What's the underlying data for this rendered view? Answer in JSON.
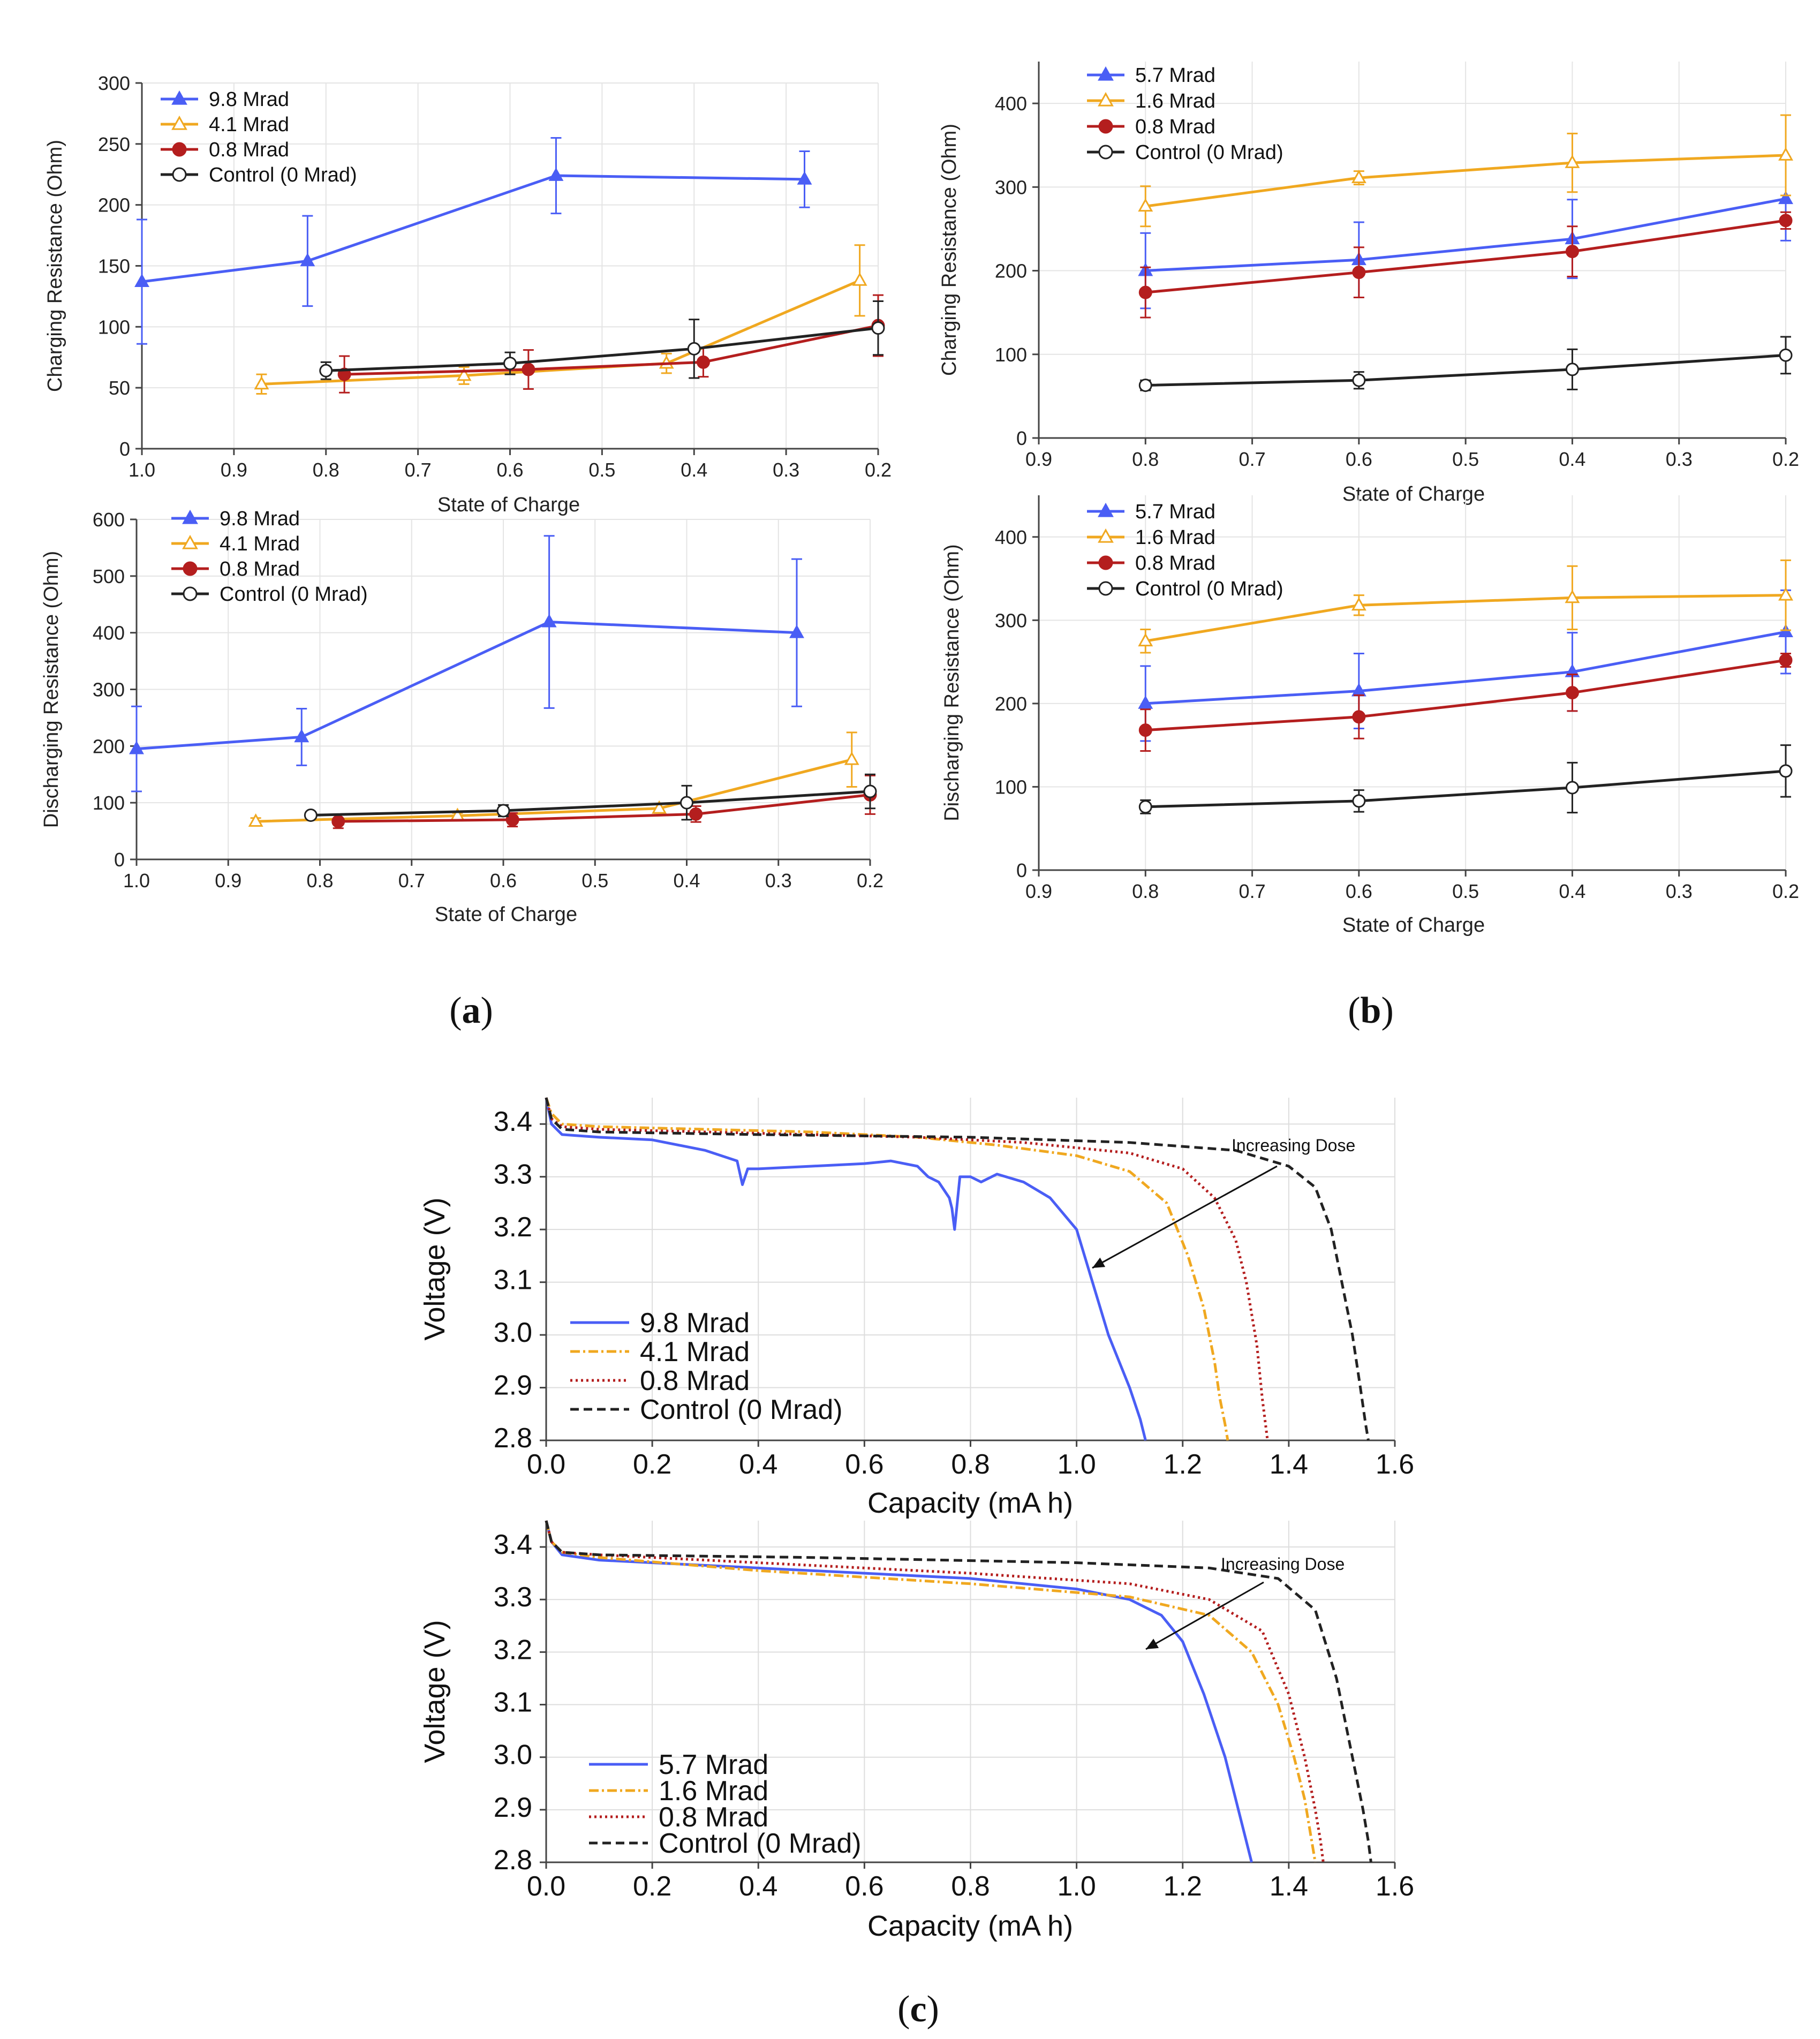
{
  "colors": {
    "blue": "#4a5ef5",
    "orange": "#f0a820",
    "red": "#b41e1e",
    "black": "#222222"
  },
  "captions": [
    {
      "open": "(",
      "letter": "a",
      "close": ")"
    },
    {
      "open": "(",
      "letter": "b",
      "close": ")"
    },
    {
      "open": "(",
      "letter": "c",
      "close": ")"
    }
  ],
  "chart_data": [
    {
      "id": "a-charge",
      "type": "line",
      "xlabel": "State of Charge",
      "ylabel": "Charging Resistance (Ohm)",
      "xlim": [
        1.0,
        0.2
      ],
      "ylim": [
        0,
        300
      ],
      "xticks": [
        "1.0",
        "0.9",
        "0.8",
        "0.7",
        "0.6",
        "0.5",
        "0.4",
        "0.3",
        "0.2"
      ],
      "yticks": [
        "0",
        "50",
        "100",
        "150",
        "200",
        "250",
        "300"
      ],
      "series": [
        {
          "name": "9.8 Mrad",
          "color": "blue",
          "marker": "triangle",
          "filled": true,
          "x": [
            1.0,
            0.82,
            0.55,
            0.28
          ],
          "y": [
            137,
            154,
            224,
            221
          ],
          "err": [
            51,
            37,
            31,
            23
          ]
        },
        {
          "name": "4.1 Mrad",
          "color": "orange",
          "marker": "triangle",
          "filled": false,
          "x": [
            0.87,
            0.65,
            0.43,
            0.22
          ],
          "y": [
            53,
            60,
            70,
            138
          ],
          "err": [
            8,
            7,
            8,
            29
          ]
        },
        {
          "name": "0.8 Mrad",
          "color": "red",
          "marker": "circle",
          "filled": true,
          "x": [
            0.78,
            0.58,
            0.39,
            0.2
          ],
          "y": [
            61,
            65,
            71,
            101
          ],
          "err": [
            15,
            16,
            12,
            25
          ]
        },
        {
          "name": "Control (0 Mrad)",
          "color": "black",
          "marker": "circle",
          "filled": false,
          "x": [
            0.8,
            0.6,
            0.4,
            0.2
          ],
          "y": [
            64,
            70,
            82,
            99
          ],
          "err": [
            7,
            9,
            24,
            22
          ]
        }
      ]
    },
    {
      "id": "a-discharge",
      "type": "line",
      "xlabel": "State of Charge",
      "ylabel": "Discharging Resistance (Ohm)",
      "xlim": [
        1.0,
        0.2
      ],
      "ylim": [
        0,
        600
      ],
      "xticks": [
        "1.0",
        "0.9",
        "0.8",
        "0.7",
        "0.6",
        "0.5",
        "0.4",
        "0.3",
        "0.2"
      ],
      "yticks": [
        "0",
        "100",
        "200",
        "300",
        "400",
        "500",
        "600"
      ],
      "series": [
        {
          "name": "9.8 Mrad",
          "color": "blue",
          "marker": "triangle",
          "filled": true,
          "x": [
            1.0,
            0.82,
            0.55,
            0.28
          ],
          "y": [
            195,
            216,
            419,
            400
          ],
          "err": [
            75,
            50,
            152,
            130
          ]
        },
        {
          "name": "4.1 Mrad",
          "color": "orange",
          "marker": "triangle",
          "filled": false,
          "x": [
            0.87,
            0.65,
            0.43,
            0.22
          ],
          "y": [
            67,
            77,
            90,
            176
          ],
          "err": [
            6,
            5,
            8,
            48
          ]
        },
        {
          "name": "0.8 Mrad",
          "color": "red",
          "marker": "circle",
          "filled": true,
          "x": [
            0.78,
            0.59,
            0.39,
            0.2
          ],
          "y": [
            67,
            70,
            80,
            114
          ],
          "err": [
            12,
            12,
            14,
            34
          ]
        },
        {
          "name": "Control (0 Mrad)",
          "color": "black",
          "marker": "circle",
          "filled": false,
          "x": [
            0.81,
            0.6,
            0.4,
            0.2
          ],
          "y": [
            78,
            86,
            100,
            120
          ],
          "err": [
            4,
            10,
            30,
            30
          ]
        }
      ]
    },
    {
      "id": "b-charge",
      "type": "line",
      "xlabel": "State of Charge",
      "ylabel": "Charging Resistance (Ohm)",
      "xlim": [
        0.9,
        0.2
      ],
      "ylim": [
        0,
        450
      ],
      "xticks": [
        "0.9",
        "0.8",
        "0.7",
        "0.6",
        "0.5",
        "0.4",
        "0.3",
        "0.2"
      ],
      "yticks": [
        "0",
        "100",
        "200",
        "300",
        "400"
      ],
      "series": [
        {
          "name": "5.7 Mrad",
          "color": "blue",
          "marker": "triangle",
          "filled": true,
          "x": [
            0.8,
            0.6,
            0.4,
            0.2
          ],
          "y": [
            200,
            213,
            238,
            286
          ],
          "err": [
            45,
            45,
            47,
            50
          ]
        },
        {
          "name": "1.6 Mrad",
          "color": "orange",
          "marker": "triangle",
          "filled": false,
          "x": [
            0.8,
            0.6,
            0.4,
            0.2
          ],
          "y": [
            277,
            311,
            329,
            338
          ],
          "err": [
            24,
            8,
            35,
            48
          ]
        },
        {
          "name": "0.8 Mrad",
          "color": "red",
          "marker": "circle",
          "filled": true,
          "x": [
            0.8,
            0.6,
            0.4,
            0.2
          ],
          "y": [
            174,
            198,
            223,
            260
          ],
          "err": [
            30,
            30,
            30,
            10
          ]
        },
        {
          "name": "Control (0 Mrad)",
          "color": "black",
          "marker": "circle",
          "filled": false,
          "x": [
            0.8,
            0.6,
            0.4,
            0.2
          ],
          "y": [
            63,
            69,
            82,
            99
          ],
          "err": [
            6,
            10,
            24,
            22
          ]
        }
      ]
    },
    {
      "id": "b-discharge",
      "type": "line",
      "xlabel": "State of Charge",
      "ylabel": "Discharging Resistance (Ohm)",
      "xlim": [
        0.9,
        0.2
      ],
      "ylim": [
        0,
        450
      ],
      "xticks": [
        "0.9",
        "0.8",
        "0.7",
        "0.6",
        "0.5",
        "0.4",
        "0.3",
        "0.2"
      ],
      "yticks": [
        "0",
        "100",
        "200",
        "300",
        "400"
      ],
      "series": [
        {
          "name": "5.7 Mrad",
          "color": "blue",
          "marker": "triangle",
          "filled": true,
          "x": [
            0.8,
            0.6,
            0.4,
            0.2
          ],
          "y": [
            200,
            215,
            238,
            286
          ],
          "err": [
            45,
            45,
            47,
            50
          ]
        },
        {
          "name": "1.6 Mrad",
          "color": "orange",
          "marker": "triangle",
          "filled": false,
          "x": [
            0.8,
            0.6,
            0.4,
            0.2
          ],
          "y": [
            275,
            318,
            327,
            330
          ],
          "err": [
            14,
            12,
            38,
            42
          ]
        },
        {
          "name": "0.8 Mrad",
          "color": "red",
          "marker": "circle",
          "filled": true,
          "x": [
            0.8,
            0.6,
            0.4,
            0.2
          ],
          "y": [
            168,
            184,
            213,
            252
          ],
          "err": [
            25,
            26,
            22,
            8
          ]
        },
        {
          "name": "Control (0 Mrad)",
          "color": "black",
          "marker": "circle",
          "filled": false,
          "x": [
            0.8,
            0.6,
            0.4,
            0.2
          ],
          "y": [
            76,
            83,
            99,
            119
          ],
          "err": [
            8,
            13,
            30,
            31
          ]
        }
      ]
    },
    {
      "id": "c-top",
      "type": "line",
      "xlabel": "Capacity (mA h)",
      "ylabel": "Voltage (V)",
      "xlim": [
        0,
        1.6
      ],
      "ylim": [
        2.8,
        3.45
      ],
      "xticks": [
        "0.0",
        "0.2",
        "0.4",
        "0.6",
        "0.8",
        "1.0",
        "1.2",
        "1.4",
        "1.6"
      ],
      "yticks": [
        "2.8",
        "2.9",
        "3.0",
        "3.1",
        "3.2",
        "3.3",
        "3.4"
      ],
      "annotation": "Increasing Dose",
      "series": [
        {
          "name": "9.8 Mrad",
          "color": "blue",
          "style": "solid",
          "x": [
            0,
            0.01,
            0.03,
            0.1,
            0.2,
            0.3,
            0.36,
            0.37,
            0.38,
            0.4,
            0.5,
            0.6,
            0.65,
            0.7,
            0.72,
            0.74,
            0.76,
            0.765,
            0.77,
            0.775,
            0.78,
            0.8,
            0.82,
            0.85,
            0.9,
            0.95,
            1.0,
            1.03,
            1.06,
            1.08,
            1.1,
            1.12,
            1.13
          ],
          "y": [
            3.45,
            3.4,
            3.38,
            3.375,
            3.37,
            3.35,
            3.33,
            3.285,
            3.315,
            3.315,
            3.32,
            3.325,
            3.33,
            3.32,
            3.3,
            3.29,
            3.26,
            3.24,
            3.2,
            3.25,
            3.3,
            3.3,
            3.29,
            3.305,
            3.29,
            3.26,
            3.2,
            3.1,
            3.0,
            2.95,
            2.9,
            2.84,
            2.8
          ]
        },
        {
          "name": "4.1 Mrad",
          "color": "orange",
          "style": "dashdot",
          "x": [
            0,
            0.01,
            0.03,
            0.1,
            0.3,
            0.5,
            0.7,
            0.85,
            1.0,
            1.1,
            1.17,
            1.21,
            1.24,
            1.26,
            1.27,
            1.28,
            1.285
          ],
          "y": [
            3.45,
            3.42,
            3.4,
            3.395,
            3.39,
            3.385,
            3.375,
            3.36,
            3.34,
            3.31,
            3.25,
            3.15,
            3.05,
            2.95,
            2.88,
            2.83,
            2.8
          ]
        },
        {
          "name": "0.8 Mrad",
          "color": "red",
          "style": "dotted",
          "x": [
            0,
            0.01,
            0.03,
            0.1,
            0.3,
            0.5,
            0.7,
            0.9,
            1.1,
            1.2,
            1.26,
            1.3,
            1.32,
            1.34,
            1.35,
            1.36
          ],
          "y": [
            3.45,
            3.41,
            3.395,
            3.39,
            3.385,
            3.38,
            3.375,
            3.365,
            3.345,
            3.315,
            3.26,
            3.18,
            3.1,
            2.98,
            2.88,
            2.8
          ]
        },
        {
          "name": "Control (0 Mrad)",
          "color": "black",
          "style": "dashed",
          "x": [
            0,
            0.01,
            0.03,
            0.1,
            0.4,
            0.8,
            1.1,
            1.3,
            1.4,
            1.45,
            1.48,
            1.5,
            1.52,
            1.535,
            1.545,
            1.55
          ],
          "y": [
            3.45,
            3.41,
            3.39,
            3.385,
            3.38,
            3.375,
            3.365,
            3.35,
            3.32,
            3.28,
            3.2,
            3.1,
            3.0,
            2.9,
            2.83,
            2.8
          ]
        }
      ]
    },
    {
      "id": "c-bottom",
      "type": "line",
      "xlabel": "Capacity (mA h)",
      "ylabel": "Voltage (V)",
      "xlim": [
        0,
        1.6
      ],
      "ylim": [
        2.8,
        3.45
      ],
      "xticks": [
        "0.0",
        "0.2",
        "0.4",
        "0.6",
        "0.8",
        "1.0",
        "1.2",
        "1.4",
        "1.6"
      ],
      "yticks": [
        "2.8",
        "2.9",
        "3.0",
        "3.1",
        "3.2",
        "3.3",
        "3.4"
      ],
      "annotation": "Increasing Dose",
      "series": [
        {
          "name": "5.7 Mrad",
          "color": "blue",
          "style": "solid",
          "x": [
            0,
            0.01,
            0.03,
            0.1,
            0.4,
            0.8,
            1.0,
            1.1,
            1.16,
            1.2,
            1.24,
            1.28,
            1.31,
            1.33
          ],
          "y": [
            3.45,
            3.41,
            3.385,
            3.375,
            3.36,
            3.34,
            3.32,
            3.3,
            3.27,
            3.22,
            3.12,
            3.0,
            2.88,
            2.8
          ]
        },
        {
          "name": "1.6 Mrad",
          "color": "orange",
          "style": "dashdot",
          "x": [
            0,
            0.01,
            0.03,
            0.1,
            0.4,
            0.8,
            1.1,
            1.25,
            1.33,
            1.38,
            1.41,
            1.43,
            1.44,
            1.45
          ],
          "y": [
            3.45,
            3.41,
            3.39,
            3.38,
            3.355,
            3.33,
            3.305,
            3.27,
            3.2,
            3.1,
            3.0,
            2.92,
            2.86,
            2.8
          ]
        },
        {
          "name": "0.8 Mrad",
          "color": "red",
          "style": "dotted",
          "x": [
            0,
            0.01,
            0.03,
            0.1,
            0.4,
            0.8,
            1.1,
            1.25,
            1.35,
            1.4,
            1.43,
            1.45,
            1.46,
            1.465
          ],
          "y": [
            3.45,
            3.41,
            3.39,
            3.385,
            3.37,
            3.35,
            3.33,
            3.3,
            3.24,
            3.12,
            3.0,
            2.9,
            2.84,
            2.8
          ]
        },
        {
          "name": "Control (0 Mrad)",
          "color": "black",
          "style": "dashed",
          "x": [
            0,
            0.01,
            0.03,
            0.1,
            0.5,
            1.0,
            1.25,
            1.38,
            1.45,
            1.49,
            1.52,
            1.54,
            1.55,
            1.555
          ],
          "y": [
            3.45,
            3.41,
            3.39,
            3.385,
            3.38,
            3.37,
            3.36,
            3.34,
            3.28,
            3.15,
            3.0,
            2.9,
            2.84,
            2.8
          ]
        }
      ]
    }
  ]
}
